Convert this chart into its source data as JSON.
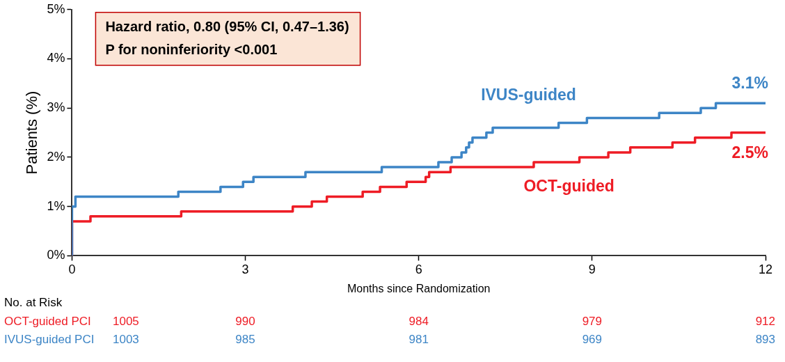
{
  "chart_data": {
    "type": "step",
    "ylabel": "Patients (%)",
    "xlabel": "Months since Randomization",
    "xlim": [
      0,
      12
    ],
    "xticks": [
      0,
      3,
      6,
      9,
      12
    ],
    "ylim": [
      0,
      5
    ],
    "yticks": [
      {
        "value": 0,
        "label": "0%"
      },
      {
        "value": 1,
        "label": "1%"
      },
      {
        "value": 2,
        "label": "2%"
      },
      {
        "value": 3,
        "label": "3%"
      },
      {
        "value": 4,
        "label": "4%"
      },
      {
        "value": 5,
        "label": "5%"
      }
    ],
    "grid": false,
    "legend": false,
    "marker": "none",
    "line_style": "solid",
    "series": [
      {
        "name": "IVUS-guided",
        "color": "#3d85c6",
        "x": [
          0,
          0,
          0.06,
          1.84,
          2.57,
          2.96,
          3.14,
          4.04,
          5.36,
          6.34,
          6.57,
          6.74,
          6.82,
          6.87,
          6.93,
          7.17,
          7.28,
          8.42,
          8.91,
          10.16,
          10.88,
          11.14,
          12
        ],
        "values": [
          0,
          1.0,
          1.2,
          1.3,
          1.4,
          1.5,
          1.6,
          1.7,
          1.8,
          1.9,
          2.0,
          2.1,
          2.2,
          2.3,
          2.4,
          2.5,
          2.6,
          2.7,
          2.8,
          2.9,
          3.0,
          3.1,
          3.1
        ]
      },
      {
        "name": "OCT-guided",
        "color": "#ee1c25",
        "x": [
          0,
          0,
          0.32,
          1.89,
          3.82,
          4.15,
          4.41,
          5.03,
          5.33,
          5.79,
          6.12,
          6.18,
          6.55,
          7.99,
          8.78,
          9.28,
          9.66,
          10.39,
          10.78,
          11.41,
          12
        ],
        "values": [
          0,
          0.7,
          0.8,
          0.9,
          1.0,
          1.1,
          1.2,
          1.3,
          1.4,
          1.5,
          1.6,
          1.7,
          1.8,
          1.9,
          2.0,
          2.1,
          2.2,
          2.3,
          2.4,
          2.5,
          2.5
        ]
      }
    ],
    "annotations": [
      "Hazard ratio, 0.80 (95% CI, 0.47–1.36)",
      "P for noninferiority <0.001",
      {
        "text": "3.1%",
        "x": 12,
        "y": 3.1
      },
      {
        "text": "2.5%",
        "x": 12,
        "y": 2.5
      },
      "No. at Risk",
      "OCT-guided PCI",
      "1005",
      "990",
      "984",
      "979",
      "912",
      "IVUS-guided PCI",
      "1003",
      "985",
      "981",
      "969",
      "893"
    ]
  }
}
